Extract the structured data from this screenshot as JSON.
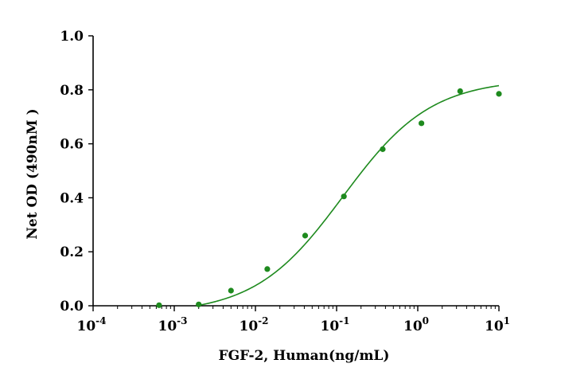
{
  "chart_data": {
    "type": "scatter",
    "xlabel": "FGF-2, Human(ng/mL)",
    "ylabel": "Net OD (490nM )",
    "x_scale": "log",
    "xlim": [
      0.0001,
      10
    ],
    "ylim": [
      0,
      1.0
    ],
    "x_ticks": [
      {
        "value": 0.0001,
        "base": "10",
        "exp": "-4"
      },
      {
        "value": 0.001,
        "base": "10",
        "exp": "-3"
      },
      {
        "value": 0.01,
        "base": "10",
        "exp": "-2"
      },
      {
        "value": 0.1,
        "base": "10",
        "exp": "-1"
      },
      {
        "value": 1,
        "base": "10",
        "exp": "0"
      },
      {
        "value": 10,
        "base": "10",
        "exp": "1"
      }
    ],
    "y_ticks": [
      "0.0",
      "0.2",
      "0.4",
      "0.6",
      "0.8",
      "1.0"
    ],
    "color": "#1e8a1e",
    "series": [
      {
        "points": [
          {
            "x": 0.00065,
            "y": 0.002
          },
          {
            "x": 0.002,
            "y": 0.005
          },
          {
            "x": 0.005,
            "y": 0.056
          },
          {
            "x": 0.014,
            "y": 0.136
          },
          {
            "x": 0.041,
            "y": 0.26
          },
          {
            "x": 0.123,
            "y": 0.405
          },
          {
            "x": 0.37,
            "y": 0.58
          },
          {
            "x": 1.11,
            "y": 0.676
          },
          {
            "x": 3.33,
            "y": 0.795
          },
          {
            "x": 10,
            "y": 0.785
          }
        ]
      }
    ],
    "fit_curve": {
      "model": "4PL",
      "bottom": -0.03,
      "top": 0.84,
      "ec50": 0.12,
      "hill": 0.8,
      "x_range": [
        0.001,
        10
      ]
    },
    "grid": false,
    "legend": "none"
  }
}
